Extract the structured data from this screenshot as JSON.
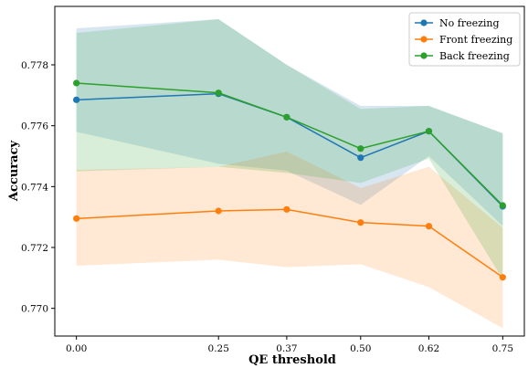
{
  "chart_data": {
    "type": "line",
    "xlabel": "QE threshold",
    "ylabel": "Accuracy",
    "x": [
      0.0,
      0.25,
      0.37,
      0.5,
      0.62,
      0.75
    ],
    "x_tick_labels": [
      "0.00",
      "0.25",
      "0.37",
      "0.50",
      "0.62",
      "0.75"
    ],
    "y_ticks": [
      0.77,
      0.772,
      0.774,
      0.776,
      0.778
    ],
    "y_tick_labels": [
      "0.770",
      "0.772",
      "0.774",
      "0.776",
      "0.778"
    ],
    "xlim": [
      -0.038,
      0.788
    ],
    "ylim": [
      0.76909,
      0.77992
    ],
    "legend_position": "top-right",
    "grid": false,
    "series": [
      {
        "name": "No freezing",
        "color": "#1f77b4",
        "values": [
          0.77685,
          0.77705,
          0.77628,
          0.77495,
          0.77582,
          0.77335
        ],
        "band_low": [
          0.7758,
          0.77475,
          0.77452,
          0.7734,
          0.775,
          0.7727
        ],
        "band_high": [
          0.7792,
          0.7795,
          0.778,
          0.77665,
          0.77665,
          0.77575
        ]
      },
      {
        "name": "Front freezing",
        "color": "#ff7f0e",
        "values": [
          0.77295,
          0.7732,
          0.77325,
          0.77282,
          0.7727,
          0.77102
        ],
        "band_low": [
          0.7714,
          0.7716,
          0.77135,
          0.77145,
          0.7707,
          0.76935
        ],
        "band_high": [
          0.77455,
          0.77465,
          0.77515,
          0.77395,
          0.77465,
          0.77265
        ]
      },
      {
        "name": "Back freezing",
        "color": "#2ca02c",
        "values": [
          0.7774,
          0.77708,
          0.77628,
          0.77525,
          0.77582,
          0.77338
        ],
        "band_low": [
          0.7745,
          0.77465,
          0.77445,
          0.77412,
          0.77492,
          0.77095
        ],
        "band_high": [
          0.77905,
          0.7795,
          0.778,
          0.77655,
          0.77665,
          0.77575
        ]
      }
    ]
  }
}
